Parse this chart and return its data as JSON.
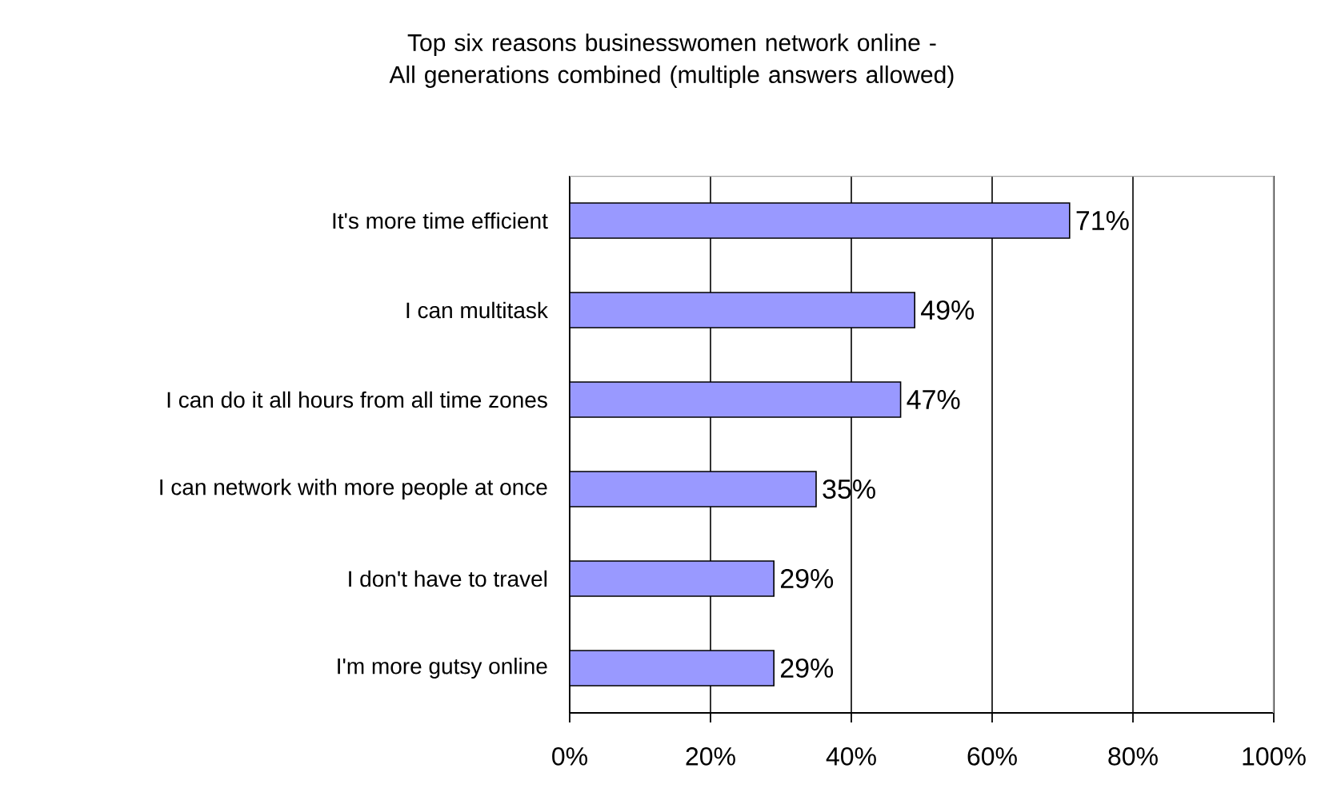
{
  "chart_data": {
    "type": "bar",
    "orientation": "horizontal",
    "title": "Top six reasons businesswomen network online -\nAll generations combined (multiple answers allowed)",
    "categories": [
      "It's more time efficient",
      "I can multitask",
      "I can do it all hours from all time zones",
      "I can network with more people at once",
      "I don't have to travel",
      "I'm more gutsy online"
    ],
    "values": [
      71,
      49,
      47,
      35,
      29,
      29
    ],
    "value_labels": [
      "71%",
      "49%",
      "47%",
      "35%",
      "29%",
      "29%"
    ],
    "color": "#9999ff",
    "xlim": [
      0,
      100
    ],
    "xticks": [
      {
        "value": 0,
        "label": "0%"
      },
      {
        "value": 20,
        "label": "20%"
      },
      {
        "value": 40,
        "label": "40%"
      },
      {
        "value": 60,
        "label": "60%"
      },
      {
        "value": 80,
        "label": "80%"
      },
      {
        "value": 100,
        "label": "100%"
      }
    ],
    "grid": "x"
  }
}
